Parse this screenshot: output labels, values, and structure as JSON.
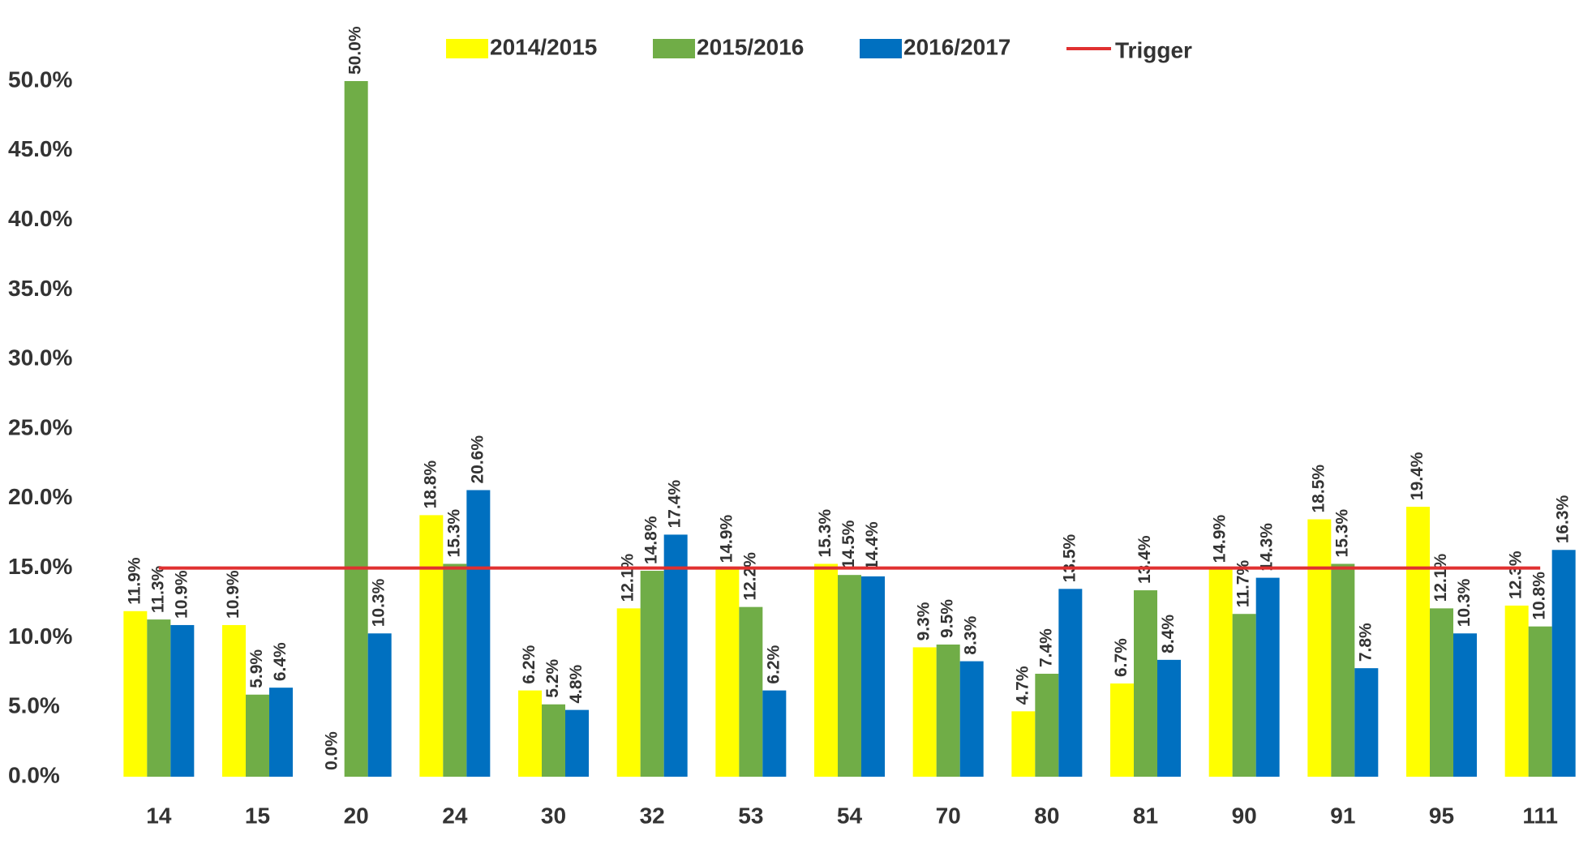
{
  "chart_data": {
    "type": "bar",
    "categories": [
      "14",
      "15",
      "20",
      "24",
      "30",
      "32",
      "53",
      "54",
      "70",
      "80",
      "81",
      "90",
      "91",
      "95",
      "111"
    ],
    "series": [
      {
        "name": "2014/2015",
        "color": "#ffff00",
        "values": [
          11.9,
          10.9,
          0.0,
          18.8,
          6.2,
          12.1,
          14.9,
          15.3,
          9.3,
          4.7,
          6.7,
          14.9,
          18.5,
          19.4,
          12.3
        ],
        "value_labels": [
          "11.9%",
          "10.9%",
          "0.0%",
          "18.8%",
          "6.2%",
          "12.1%",
          "14.9%",
          "15.3%",
          "9.3%",
          "4.7%",
          "6.7%",
          "14.9%",
          "18.5%",
          "19.4%",
          "12.3%"
        ]
      },
      {
        "name": "2015/2016",
        "color": "#70ad47",
        "values": [
          11.3,
          5.9,
          50.0,
          15.3,
          5.2,
          14.8,
          12.2,
          14.5,
          9.5,
          7.4,
          13.4,
          11.7,
          15.3,
          12.1,
          10.8
        ],
        "value_labels": [
          "11.3%",
          "5.9%",
          "50.0%",
          "15.3%",
          "5.2%",
          "14.8%",
          "12.2%",
          "14.5%",
          "9.5%",
          "7.4%",
          "13.4%",
          "11.7%",
          "15.3%",
          "12.1%",
          "10.8%"
        ]
      },
      {
        "name": "2016/2017",
        "color": "#0070c0",
        "values": [
          10.9,
          6.4,
          10.3,
          20.6,
          4.8,
          17.4,
          6.2,
          14.4,
          8.3,
          13.5,
          8.4,
          14.3,
          7.8,
          10.3,
          16.3
        ],
        "value_labels": [
          "10.9%",
          "6.4%",
          "10.3%",
          "20.6%",
          "4.8%",
          "17.4%",
          "6.2%",
          "14.4%",
          "8.3%",
          "13.5%",
          "8.4%",
          "14.3%",
          "7.8%",
          "10.3%",
          "16.3%"
        ]
      },
      {
        "name": "Trigger",
        "type": "line",
        "color": "#e03030",
        "values": [
          15,
          15,
          15,
          15,
          15,
          15,
          15,
          15,
          15,
          15,
          15,
          15,
          15,
          15,
          15
        ]
      }
    ],
    "ylim": [
      0,
      50
    ],
    "yticks": [
      {
        "value": 0,
        "label": "0.0%"
      },
      {
        "value": 5,
        "label": "5.0%"
      },
      {
        "value": 10,
        "label": "10.0%"
      },
      {
        "value": 15,
        "label": "15.0%"
      },
      {
        "value": 20,
        "label": "20.0%"
      },
      {
        "value": 25,
        "label": "25.0%"
      },
      {
        "value": 30,
        "label": "30.0%"
      },
      {
        "value": 35,
        "label": "35.0%"
      },
      {
        "value": 40,
        "label": "40.0%"
      },
      {
        "value": 45,
        "label": "45.0%"
      },
      {
        "value": 50,
        "label": "50.0%"
      }
    ],
    "grid": false
  }
}
